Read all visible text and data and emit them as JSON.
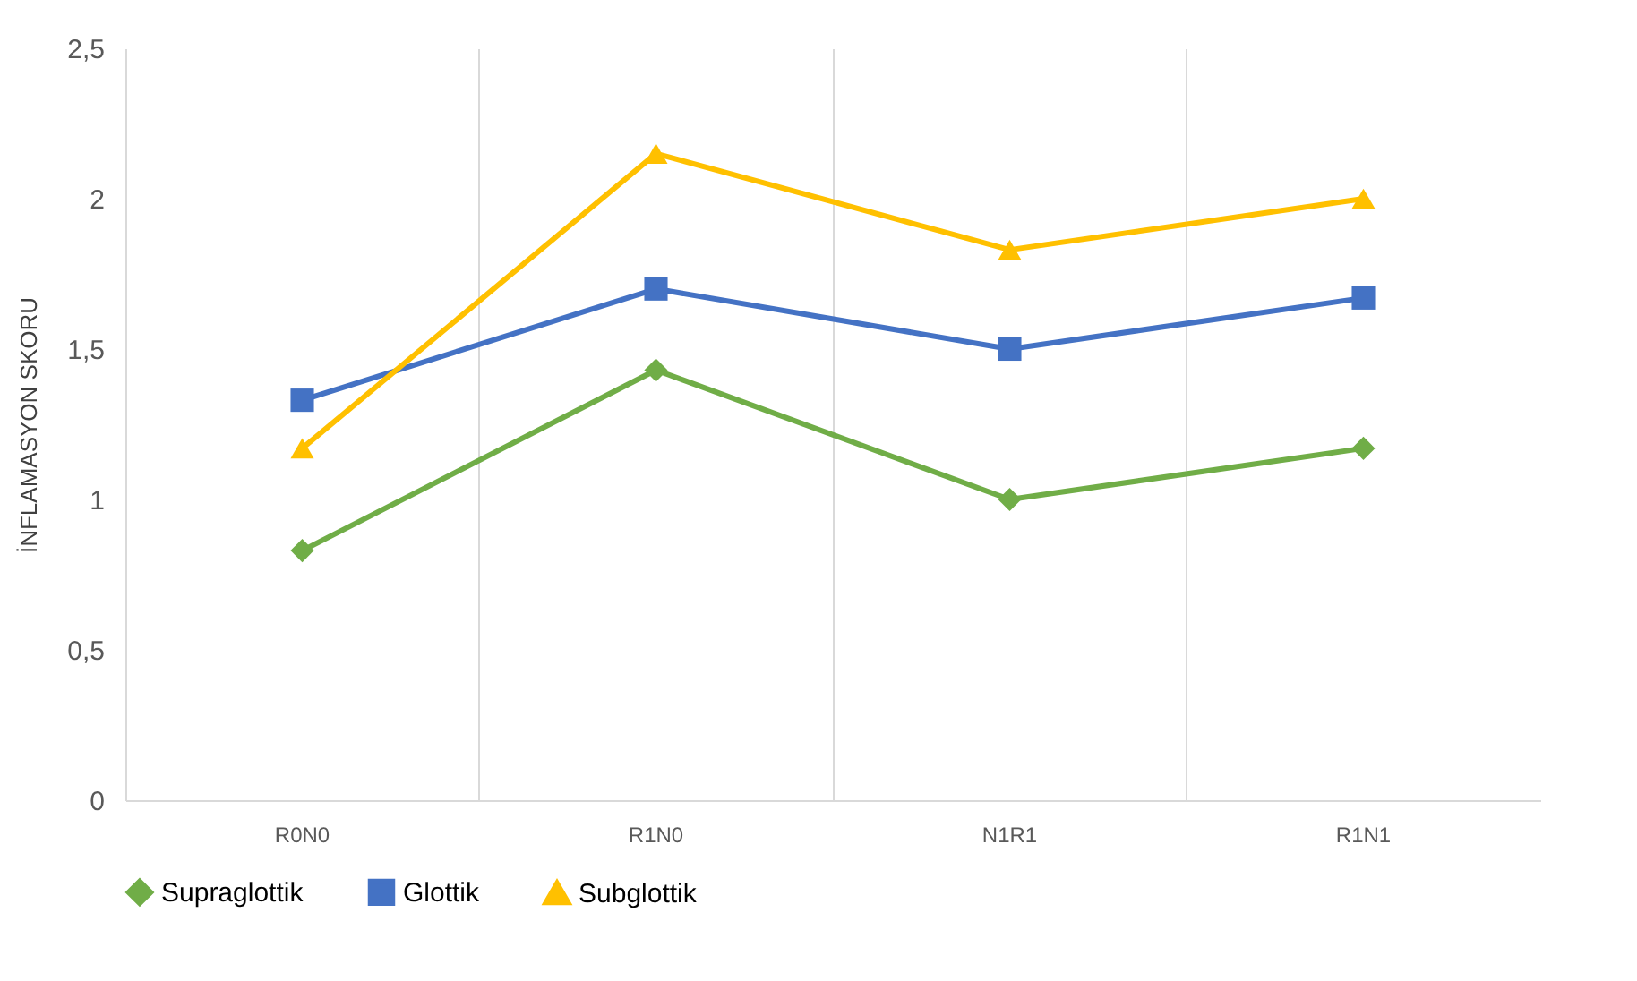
{
  "chart_data": {
    "type": "line",
    "ylabel": "İNFLAMASYON SKORU",
    "categories": [
      "R0N0",
      "R1N0",
      "N1R1",
      "R1N1"
    ],
    "series": [
      {
        "name": "Supraglottik",
        "color": "#70ad47",
        "marker": "diamond",
        "values": [
          0.83,
          1.43,
          1.0,
          1.17
        ]
      },
      {
        "name": "Glottik",
        "color": "#4472c4",
        "marker": "square",
        "values": [
          1.33,
          1.7,
          1.5,
          1.67
        ]
      },
      {
        "name": "Subglottik",
        "color": "#ffc000",
        "marker": "triangle",
        "values": [
          1.17,
          2.15,
          1.83,
          2.0
        ]
      }
    ],
    "ylim": [
      0,
      2.5
    ],
    "yticks": [
      {
        "value": 0,
        "label": "0"
      },
      {
        "value": 0.5,
        "label": "0,5"
      },
      {
        "value": 1,
        "label": "1"
      },
      {
        "value": 1.5,
        "label": "1,5"
      },
      {
        "value": 2,
        "label": "2"
      },
      {
        "value": 2.5,
        "label": "2,5"
      }
    ],
    "grid": "x",
    "legend": "bottom",
    "line_style": "solid"
  }
}
